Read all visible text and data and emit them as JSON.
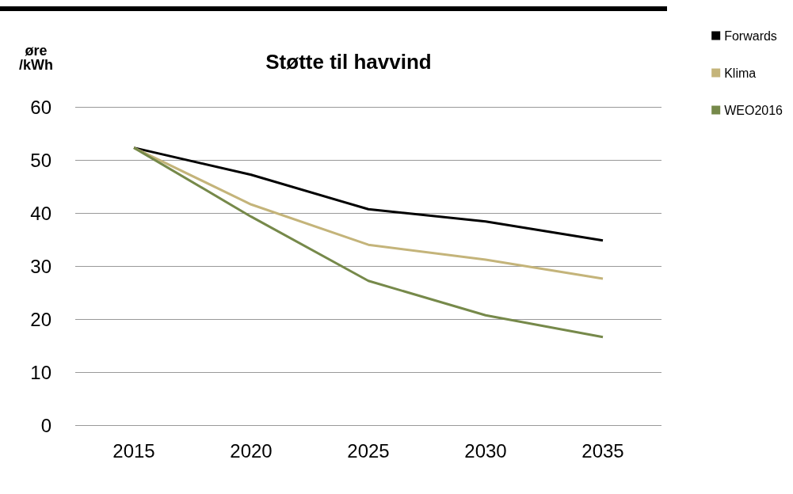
{
  "chart_data": {
    "type": "line",
    "title": "Støtte til havvind",
    "ylabel": "øre\n/kWh",
    "categories": [
      "2015",
      "2020",
      "2025",
      "2030",
      "2035"
    ],
    "series": [
      {
        "name": "Forwards",
        "color": "#000000",
        "values": [
          52.3,
          47.2,
          40.7,
          38.4,
          34.8
        ]
      },
      {
        "name": "Klima",
        "color": "#c4b47a",
        "values": [
          52.3,
          41.6,
          34.0,
          31.2,
          27.6
        ]
      },
      {
        "name": "WEO2016",
        "color": "#76894a",
        "values": [
          52.3,
          39.3,
          27.2,
          20.7,
          16.6
        ]
      }
    ],
    "ylim": [
      0,
      60
    ],
    "yticks": [
      0,
      10,
      20,
      30,
      40,
      50,
      60
    ],
    "grid": "y",
    "legend": "top right",
    "marker": "none",
    "line_style": "solid"
  }
}
